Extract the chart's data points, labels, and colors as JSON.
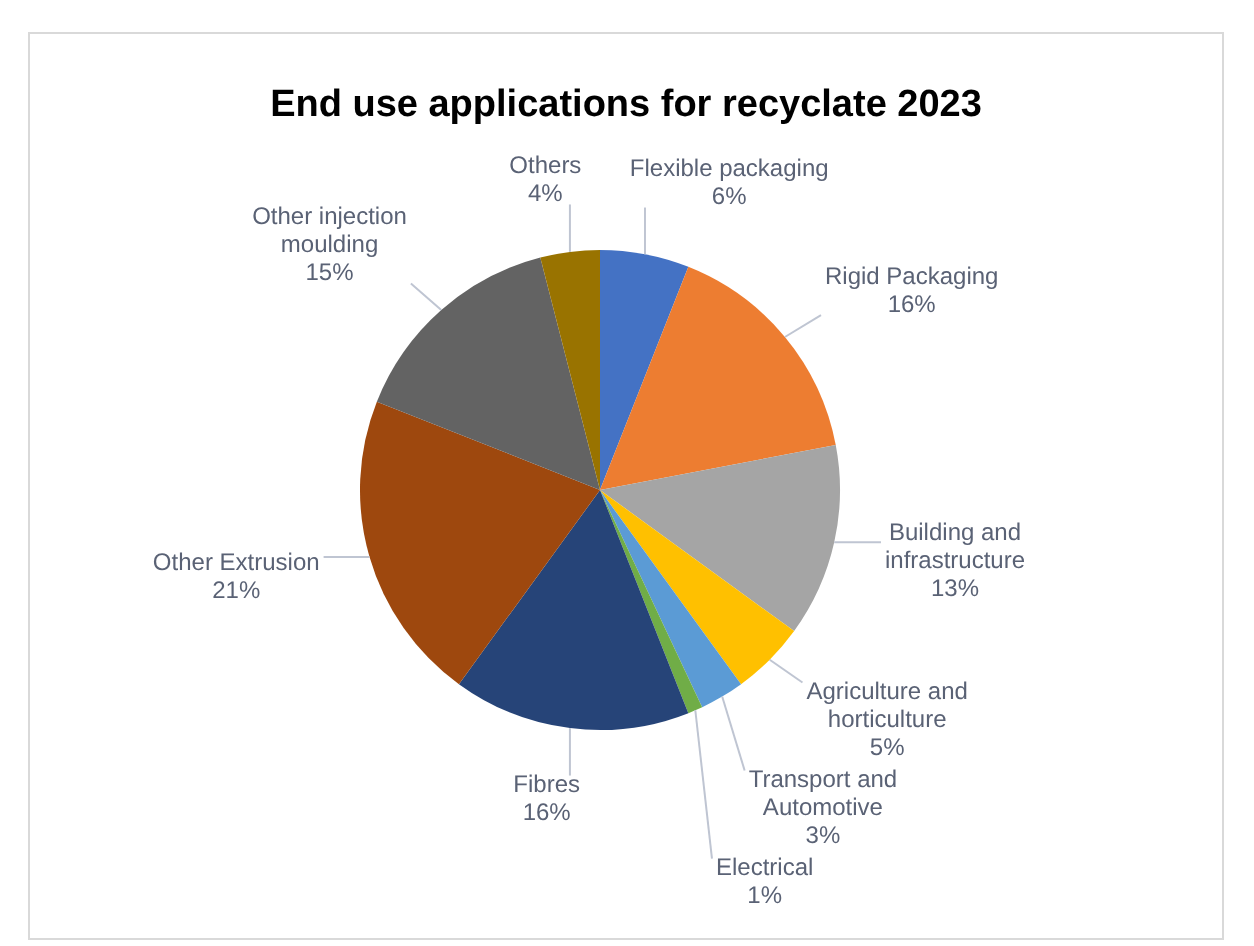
{
  "chart_data": {
    "type": "pie",
    "title": "End use applications for recyclate 2023",
    "categories": [
      "Flexible packaging",
      "Rigid Packaging",
      "Building and infrastructure",
      "Agriculture and horticulture",
      "Transport and Automotive",
      "Electrical",
      "Fibres",
      "Other Extrusion",
      "Other injection moulding",
      "Others"
    ],
    "values": [
      6,
      16,
      13,
      5,
      3,
      1,
      16,
      21,
      15,
      4
    ],
    "value_labels": [
      "6%",
      "16%",
      "13%",
      "5%",
      "3%",
      "1%",
      "16%",
      "21%",
      "15%",
      "4%"
    ],
    "colors": [
      "#4472c4",
      "#ed7d31",
      "#a5a5a5",
      "#ffc000",
      "#5b9bd5",
      "#70ad47",
      "#264478",
      "#9e480e",
      "#636363",
      "#997300"
    ]
  }
}
